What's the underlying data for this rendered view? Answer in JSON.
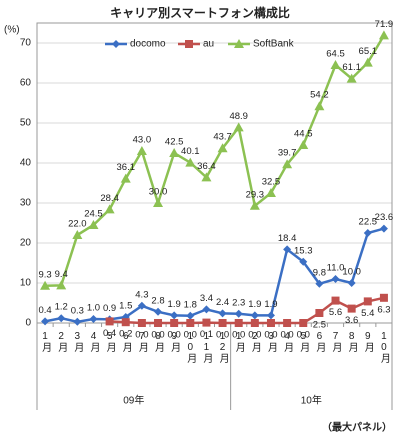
{
  "chart_data": {
    "type": "line",
    "title": "キャリア別スマートフォン構成比",
    "y_label": "(%)",
    "footnote": "（最大パネル）",
    "category_groups": [
      {
        "name": "09年",
        "categories": [
          "1月",
          "2月",
          "3月",
          "4月",
          "5月",
          "6月",
          "7月",
          "8月",
          "9月",
          "10月",
          "11月",
          "12月"
        ]
      },
      {
        "name": "10年",
        "categories": [
          "1月",
          "2月",
          "3月",
          "4月",
          "5月",
          "6月",
          "7月",
          "8月",
          "9月",
          "10月"
        ]
      }
    ],
    "series": [
      {
        "name": "docomo",
        "color": "#3b6fc4",
        "marker": "diamond",
        "values": [
          0.4,
          1.2,
          0.3,
          1.0,
          0.9,
          1.5,
          4.3,
          2.8,
          1.9,
          1.8,
          3.4,
          2.4,
          2.3,
          1.9,
          1.9,
          18.4,
          15.3,
          9.8,
          11.0,
          10.0,
          22.5,
          23.6
        ],
        "value_labels": [
          "0.4",
          "1.2",
          "0.3",
          "1.0",
          "0.9",
          "1.5",
          "4.3",
          "2.8",
          "1.9",
          "1.8",
          "3.4",
          "2.4",
          "2.3",
          "1.9",
          "1.9",
          "18.4",
          "15.3",
          "9.8",
          "11.0",
          "10.0",
          "22.5",
          "23.6"
        ]
      },
      {
        "name": "au",
        "color": "#c0504d",
        "marker": "square",
        "values": [
          null,
          null,
          null,
          null,
          0.4,
          0.2,
          0.0,
          0.0,
          0.0,
          0.0,
          0.1,
          0.0,
          0.0,
          0.0,
          0.0,
          0.0,
          0.0,
          2.5,
          5.6,
          3.6,
          5.4,
          6.3
        ],
        "value_labels": [
          null,
          null,
          null,
          null,
          "0.4",
          "0.2",
          "0.0",
          "0.0",
          "0.0",
          "0.0",
          "0.1",
          "0.0",
          "0.0",
          "0.0",
          "0.0",
          "0.0",
          "0.0",
          "2.5",
          "5.6",
          "3.6",
          "5.4",
          "6.3"
        ]
      },
      {
        "name": "SoftBank",
        "color": "#8cc152",
        "marker": "triangle",
        "values": [
          9.3,
          9.4,
          22.0,
          24.5,
          28.4,
          36.1,
          43.0,
          30.0,
          42.5,
          40.1,
          36.4,
          43.7,
          48.9,
          29.3,
          32.5,
          39.7,
          44.5,
          54.2,
          64.5,
          61.1,
          65.1,
          71.9
        ],
        "value_labels": [
          "9.3",
          "9.4",
          "22.0",
          "24.5",
          "28.4",
          "36.1",
          "43.0",
          "30.0",
          "42.5",
          "40.1",
          "36.4",
          "43.7",
          "48.9",
          "29.3",
          "32.5",
          "39.7",
          "44.5",
          "54.2",
          "64.5",
          "61.1",
          "65.1",
          "71.9"
        ]
      }
    ],
    "ylim": [
      0,
      75
    ],
    "yticks": [
      0,
      10,
      20,
      30,
      40,
      50,
      60,
      70
    ],
    "grid": true,
    "legend": "top"
  }
}
